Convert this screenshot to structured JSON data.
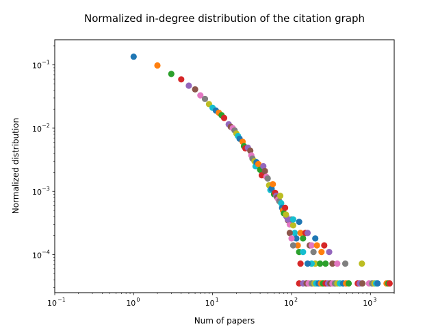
{
  "chart_data": {
    "type": "scatter",
    "title": "Normalized in-degree distribution of the citation graph",
    "xlabel": "Num of papers",
    "ylabel": "Normalized distribution",
    "xscale": "log",
    "yscale": "log",
    "xlim": [
      0.1,
      2000
    ],
    "ylim": [
      2.5e-05,
      0.25
    ],
    "x_ticks": [
      {
        "base": "10",
        "exp": "−1"
      },
      {
        "base": "10",
        "exp": "0"
      },
      {
        "base": "10",
        "exp": "1"
      },
      {
        "base": "10",
        "exp": "2"
      },
      {
        "base": "10",
        "exp": "3"
      }
    ],
    "y_ticks": [
      {
        "base": "10",
        "exp": "−4"
      },
      {
        "base": "10",
        "exp": "−3"
      },
      {
        "base": "10",
        "exp": "−2"
      },
      {
        "base": "10",
        "exp": "−1"
      }
    ],
    "legend": "none",
    "grid": false,
    "palette": [
      "#1f77b4",
      "#ff7f0e",
      "#2ca02c",
      "#d62728",
      "#9467bd",
      "#8c564b",
      "#e377c2",
      "#7f7f7f",
      "#bcbd22",
      "#17becf"
    ],
    "points": [
      [
        1,
        0.135
      ],
      [
        2,
        0.098
      ],
      [
        3,
        0.072
      ],
      [
        4,
        0.059
      ],
      [
        5,
        0.047
      ],
      [
        6,
        0.041
      ],
      [
        7,
        0.033
      ],
      [
        8,
        0.029
      ],
      [
        9,
        0.024
      ],
      [
        10,
        0.021
      ],
      [
        11,
        0.019
      ],
      [
        12,
        0.0175
      ],
      [
        13,
        0.016
      ],
      [
        14,
        0.0145
      ],
      [
        16,
        0.0115
      ],
      [
        17,
        0.0105
      ],
      [
        18,
        0.01
      ],
      [
        19,
        0.0092
      ],
      [
        20,
        0.0082
      ],
      [
        21,
        0.0075
      ],
      [
        22,
        0.0068
      ],
      [
        24,
        0.0061
      ],
      [
        25,
        0.0052
      ],
      [
        26,
        0.0048
      ],
      [
        28,
        0.0049
      ],
      [
        30,
        0.0044
      ],
      [
        31,
        0.0037
      ],
      [
        32,
        0.0033
      ],
      [
        34,
        0.003
      ],
      [
        35,
        0.0025
      ],
      [
        36,
        0.0029
      ],
      [
        38,
        0.0027
      ],
      [
        40,
        0.0022
      ],
      [
        42,
        0.0018
      ],
      [
        44,
        0.0025
      ],
      [
        46,
        0.0021
      ],
      [
        48,
        0.0017
      ],
      [
        50,
        0.0016
      ],
      [
        52,
        0.00125
      ],
      [
        54,
        0.00105
      ],
      [
        56,
        0.0011
      ],
      [
        58,
        0.0013
      ],
      [
        60,
        0.0009
      ],
      [
        62,
        0.00095
      ],
      [
        64,
        0.00085
      ],
      [
        66,
        0.0008
      ],
      [
        68,
        0.00075
      ],
      [
        70,
        0.0007
      ],
      [
        72,
        0.00085
      ],
      [
        74,
        0.00065
      ],
      [
        76,
        0.00055
      ],
      [
        78,
        0.0005
      ],
      [
        80,
        0.00045
      ],
      [
        83,
        0.00055
      ],
      [
        86,
        0.0004
      ],
      [
        90,
        0.00035
      ],
      [
        95,
        0.0003
      ],
      [
        100,
        0.00036
      ],
      [
        105,
        0.00029
      ],
      [
        110,
        0.00022
      ],
      [
        115,
        0.00018
      ],
      [
        120,
        0.00014
      ],
      [
        125,
        0.00011
      ],
      [
        130,
        7.2e-05
      ],
      [
        90,
        0.00036
      ],
      [
        95,
        0.00022
      ],
      [
        100,
        0.00018
      ],
      [
        105,
        0.00014
      ],
      [
        85,
        0.00043
      ],
      [
        105,
        0.00036
      ],
      [
        125,
        0.00033
      ],
      [
        130,
        0.00022
      ],
      [
        140,
        0.00018
      ],
      [
        150,
        0.00022
      ],
      [
        160,
        0.00022
      ],
      [
        170,
        0.00014
      ],
      [
        180,
        0.00014
      ],
      [
        190,
        0.00011
      ],
      [
        200,
        7.2e-05
      ],
      [
        180,
        7.2e-05
      ],
      [
        200,
        0.00018
      ],
      [
        210,
        0.00014
      ],
      [
        230,
        7.2e-05
      ],
      [
        260,
        0.00014
      ],
      [
        300,
        0.00011
      ],
      [
        330,
        7.2e-05
      ],
      [
        380,
        7.2e-05
      ],
      [
        480,
        7.2e-05
      ],
      [
        780,
        7.2e-05
      ],
      [
        140,
        0.00011
      ],
      [
        160,
        7.2e-05
      ],
      [
        240,
        0.00011
      ],
      [
        270,
        7.2e-05
      ],
      [
        125,
        3.5e-05
      ],
      [
        140,
        3.5e-05
      ],
      [
        155,
        3.5e-05
      ],
      [
        165,
        3.5e-05
      ],
      [
        180,
        3.5e-05
      ],
      [
        195,
        3.5e-05
      ],
      [
        205,
        3.5e-05
      ],
      [
        220,
        3.5e-05
      ],
      [
        235,
        3.5e-05
      ],
      [
        250,
        3.5e-05
      ],
      [
        270,
        3.5e-05
      ],
      [
        290,
        3.5e-05
      ],
      [
        310,
        3.5e-05
      ],
      [
        330,
        3.5e-05
      ],
      [
        355,
        3.5e-05
      ],
      [
        380,
        3.5e-05
      ],
      [
        410,
        3.5e-05
      ],
      [
        450,
        3.5e-05
      ],
      [
        490,
        3.5e-05
      ],
      [
        530,
        3.5e-05
      ],
      [
        690,
        3.5e-05
      ],
      [
        730,
        3.5e-05
      ],
      [
        790,
        3.5e-05
      ],
      [
        960,
        3.5e-05
      ],
      [
        1050,
        3.5e-05
      ],
      [
        1120,
        3.5e-05
      ],
      [
        1180,
        3.5e-05
      ],
      [
        1230,
        3.5e-05
      ],
      [
        1600,
        3.5e-05
      ],
      [
        1680,
        3.5e-05
      ],
      [
        1750,
        3.5e-05
      ]
    ]
  }
}
